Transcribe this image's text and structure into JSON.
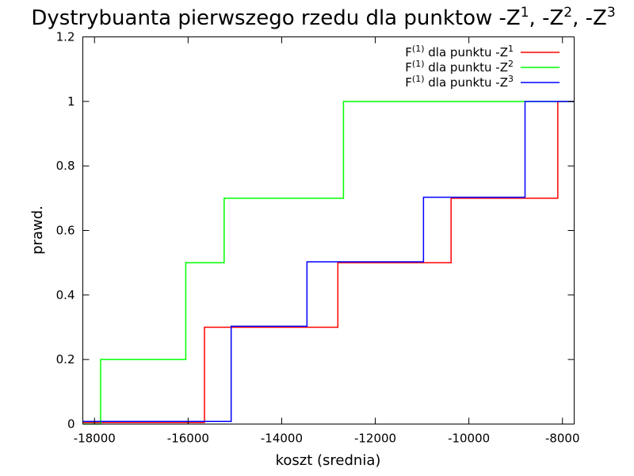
{
  "chart_data": {
    "type": "line",
    "step": true,
    "title": {
      "pre": "Dystrybuanta pierwszego rzedu dla punktow -Z",
      "sup1": "1",
      "mid1": ", -Z",
      "sup2": "2",
      "mid2": ", -Z",
      "sup3": "3"
    },
    "xlabel": "koszt (srednia)",
    "ylabel": "prawd.",
    "xlim": [
      -18250,
      -7750
    ],
    "ylim": [
      0,
      1.2
    ],
    "xticks": [
      -18000,
      -16000,
      -14000,
      -12000,
      -10000,
      -8000
    ],
    "xtick_labels": [
      "-18000",
      "-16000",
      "-14000",
      "-12000",
      "-10000",
      "-8000"
    ],
    "yticks": [
      0,
      0.2,
      0.4,
      0.6,
      0.8,
      1,
      1.2
    ],
    "ytick_labels": [
      "0",
      "0.2",
      "0.4",
      "0.6",
      "0.8",
      "1",
      "1.2"
    ],
    "grid": false,
    "legend_position": "top-right",
    "series": [
      {
        "name_prefix": "F",
        "name_sup": "(1)",
        "name_mid": " dla punktu -Z",
        "name_sup2": "1",
        "color": "#ff0000",
        "points": [
          [
            -18250,
            0.005
          ],
          [
            -15650,
            0.005
          ],
          [
            -15650,
            0.3
          ],
          [
            -12800,
            0.3
          ],
          [
            -12800,
            0.5
          ],
          [
            -10380,
            0.5
          ],
          [
            -10380,
            0.7
          ],
          [
            -8100,
            0.7
          ],
          [
            -8100,
            1.0
          ],
          [
            -7750,
            1.0
          ]
        ]
      },
      {
        "name_prefix": "F",
        "name_sup": "(1)",
        "name_mid": " dla punktu -Z",
        "name_sup2": "2",
        "color": "#00ff00",
        "points": [
          [
            -18250,
            0.0
          ],
          [
            -17870,
            0.0
          ],
          [
            -17870,
            0.2
          ],
          [
            -16050,
            0.2
          ],
          [
            -16050,
            0.5
          ],
          [
            -15230,
            0.5
          ],
          [
            -15230,
            0.7
          ],
          [
            -12680,
            0.7
          ],
          [
            -12680,
            1.0
          ],
          [
            -7750,
            1.0
          ]
        ]
      },
      {
        "name_prefix": "F",
        "name_sup": "(1)",
        "name_mid": " dla punktu -Z",
        "name_sup2": "3",
        "color": "#0000ff",
        "points": [
          [
            -18250,
            0.008
          ],
          [
            -15080,
            0.008
          ],
          [
            -15080,
            0.303
          ],
          [
            -13460,
            0.303
          ],
          [
            -13460,
            0.503
          ],
          [
            -10970,
            0.503
          ],
          [
            -10970,
            0.703
          ],
          [
            -8800,
            0.703
          ],
          [
            -8800,
            1.0
          ],
          [
            -7750,
            1.0
          ]
        ]
      }
    ]
  }
}
